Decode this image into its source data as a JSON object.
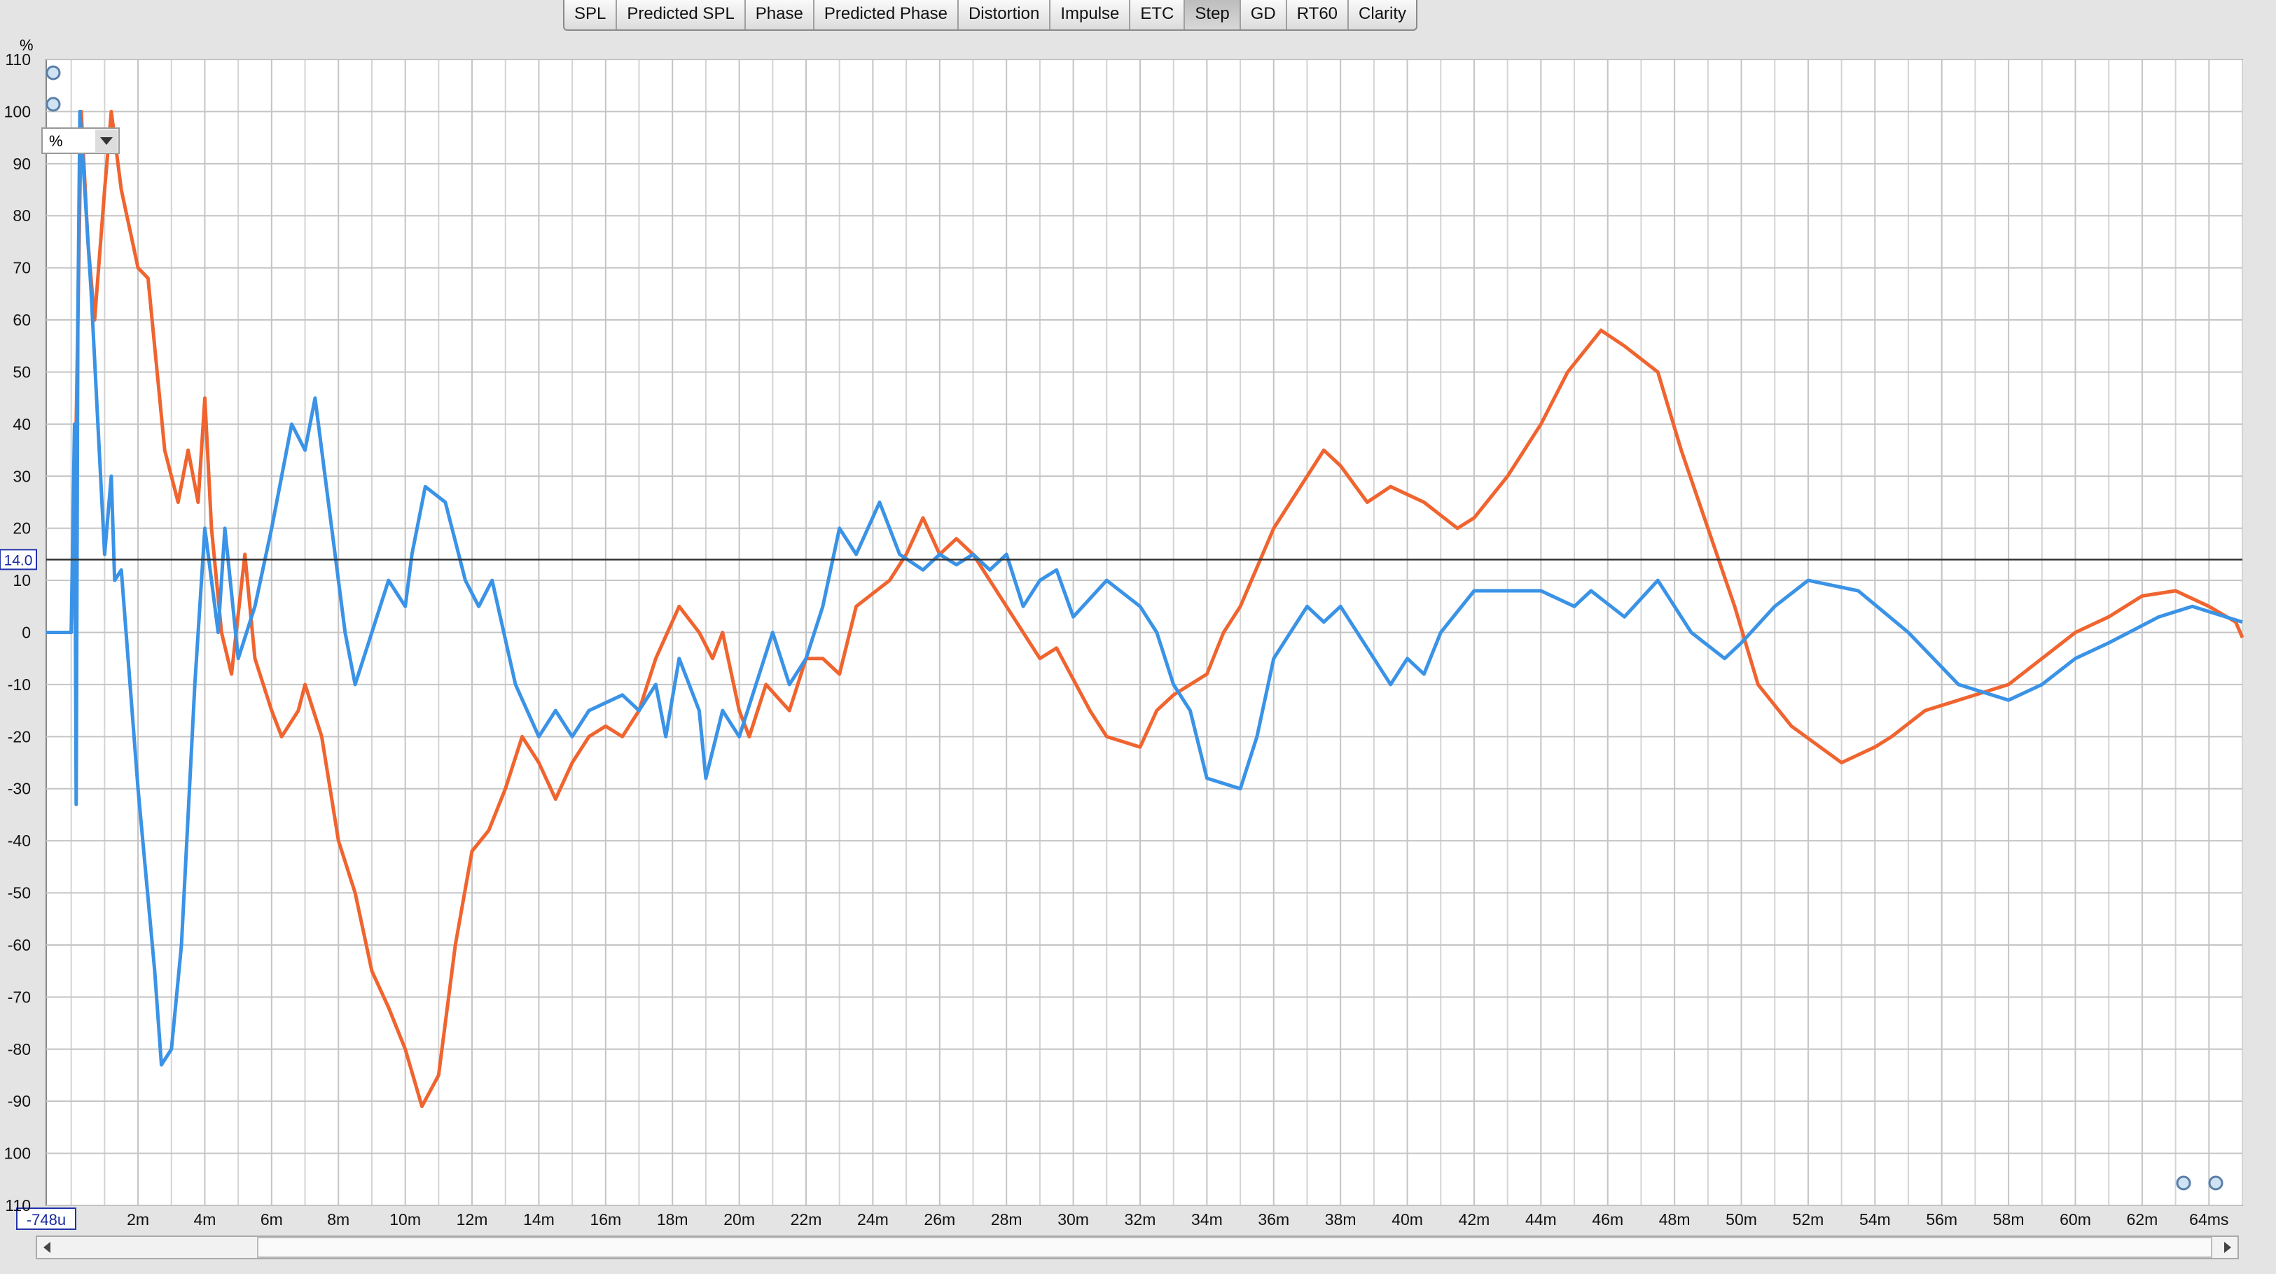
{
  "toolbar": {
    "tabs": [
      {
        "label": "SPL",
        "selected": false
      },
      {
        "label": "Predicted SPL",
        "selected": false
      },
      {
        "label": "Phase",
        "selected": false
      },
      {
        "label": "Predicted Phase",
        "selected": false
      },
      {
        "label": "Distortion",
        "selected": false
      },
      {
        "label": "Impulse",
        "selected": false
      },
      {
        "label": "ETC",
        "selected": false
      },
      {
        "label": "Step",
        "selected": true
      },
      {
        "label": "GD",
        "selected": false
      },
      {
        "label": "RT60",
        "selected": false
      },
      {
        "label": "Clarity",
        "selected": false
      }
    ]
  },
  "unit_selector": "%",
  "chart_data": {
    "type": "line",
    "y_unit": "%",
    "xlim": [
      -0.748,
      65
    ],
    "ylim": [
      -110,
      110
    ],
    "xticks": [
      {
        "value": -0.748,
        "label": "-748u"
      },
      {
        "value": 2,
        "label": "2m"
      },
      {
        "value": 4,
        "label": "4m"
      },
      {
        "value": 6,
        "label": "6m"
      },
      {
        "value": 8,
        "label": "8m"
      },
      {
        "value": 10,
        "label": "10m"
      },
      {
        "value": 12,
        "label": "12m"
      },
      {
        "value": 14,
        "label": "14m"
      },
      {
        "value": 16,
        "label": "16m"
      },
      {
        "value": 18,
        "label": "18m"
      },
      {
        "value": 20,
        "label": "20m"
      },
      {
        "value": 22,
        "label": "22m"
      },
      {
        "value": 24,
        "label": "24m"
      },
      {
        "value": 26,
        "label": "26m"
      },
      {
        "value": 28,
        "label": "28m"
      },
      {
        "value": 30,
        "label": "30m"
      },
      {
        "value": 32,
        "label": "32m"
      },
      {
        "value": 34,
        "label": "34m"
      },
      {
        "value": 36,
        "label": "36m"
      },
      {
        "value": 38,
        "label": "38m"
      },
      {
        "value": 40,
        "label": "40m"
      },
      {
        "value": 42,
        "label": "42m"
      },
      {
        "value": 44,
        "label": "44m"
      },
      {
        "value": 46,
        "label": "46m"
      },
      {
        "value": 48,
        "label": "48m"
      },
      {
        "value": 50,
        "label": "50m"
      },
      {
        "value": 52,
        "label": "52m"
      },
      {
        "value": 54,
        "label": "54m"
      },
      {
        "value": 56,
        "label": "56m"
      },
      {
        "value": 58,
        "label": "58m"
      },
      {
        "value": 60,
        "label": "60m"
      },
      {
        "value": 62,
        "label": "62m"
      },
      {
        "value": 64,
        "label": "64ms"
      }
    ],
    "xminorticks": [
      0,
      1,
      3,
      5,
      7,
      9,
      11,
      13,
      15,
      17,
      19,
      21,
      23,
      25,
      27,
      29,
      31,
      33,
      35,
      37,
      39,
      41,
      43,
      45,
      47,
      49,
      51,
      53,
      55,
      57,
      59,
      61,
      63,
      65
    ],
    "yticks": [
      110,
      100,
      90,
      80,
      70,
      60,
      50,
      40,
      30,
      20,
      10,
      0,
      -10,
      -20,
      -30,
      -40,
      -50,
      -60,
      -70,
      -80,
      -90,
      {
        "value": -100,
        "label": "100"
      },
      {
        "value": -110,
        "label": "110"
      }
    ],
    "grid": true,
    "cursor": {
      "value": 14,
      "label": "14.0"
    },
    "series": [
      {
        "color": "#f0642f",
        "x": [
          -0.748,
          0.0,
          0.1,
          0.3,
          0.5,
          0.7,
          1.0,
          1.2,
          1.5,
          2.0,
          2.3,
          2.8,
          3.2,
          3.5,
          3.8,
          4.0,
          4.2,
          4.5,
          4.8,
          5.2,
          5.5,
          6.0,
          6.3,
          6.8,
          7.0,
          7.5,
          8.0,
          8.5,
          9.0,
          9.5,
          10.0,
          10.5,
          11.0,
          11.5,
          12.0,
          12.5,
          13.0,
          13.5,
          14.0,
          14.5,
          15.0,
          15.5,
          16.0,
          16.5,
          17.0,
          17.5,
          18.2,
          18.8,
          19.2,
          19.5,
          20.0,
          20.3,
          20.8,
          21.5,
          22.0,
          22.5,
          23.0,
          23.5,
          24.5,
          25.0,
          25.5,
          26.0,
          26.5,
          27.0,
          27.5,
          28.5,
          29.0,
          29.5,
          30.5,
          31.0,
          32.0,
          32.5,
          33.0,
          34.0,
          34.5,
          35.0,
          36.0,
          36.5,
          37.0,
          37.5,
          38.0,
          38.8,
          39.5,
          40.5,
          41.5,
          42.0,
          43.0,
          44.0,
          44.8,
          45.8,
          46.5,
          47.5,
          48.2,
          49.0,
          49.8,
          50.5,
          51.5,
          53.0,
          54.0,
          54.5,
          55.5,
          57.0,
          58.0,
          59.0,
          60.0,
          61.0,
          62.0,
          63.0,
          64.0,
          64.8,
          65.0
        ],
        "values": [
          0,
          0,
          20,
          100,
          75,
          60,
          85,
          100,
          85,
          70,
          68,
          35,
          25,
          35,
          25,
          45,
          20,
          0,
          -8,
          15,
          -5,
          -15,
          -20,
          -15,
          -10,
          -20,
          -40,
          -50,
          -65,
          -72,
          -80,
          -91,
          -85,
          -60,
          -42,
          -38,
          -30,
          -20,
          -25,
          -32,
          -25,
          -20,
          -18,
          -20,
          -15,
          -5,
          5,
          0,
          -5,
          0,
          -15,
          -20,
          -10,
          -15,
          -5,
          -5,
          -8,
          5,
          10,
          15,
          22,
          15,
          18,
          15,
          10,
          0,
          -5,
          -3,
          -15,
          -20,
          -22,
          -15,
          -12,
          -8,
          0,
          5,
          20,
          25,
          30,
          35,
          32,
          25,
          28,
          25,
          20,
          22,
          30,
          40,
          50,
          58,
          55,
          50,
          35,
          20,
          5,
          -10,
          -18,
          -25,
          -22,
          -20,
          -15,
          -12,
          -10,
          -5,
          0,
          3,
          7,
          8,
          5,
          2,
          -1
        ]
      },
      {
        "color": "#3a93e6",
        "x": [
          -0.748,
          0.0,
          0.1,
          0.15,
          0.2,
          0.26,
          0.6,
          0.8,
          1.0,
          1.2,
          1.3,
          1.5,
          2.0,
          2.5,
          2.7,
          3.0,
          3.3,
          3.7,
          4.0,
          4.4,
          4.6,
          5.0,
          5.5,
          6.0,
          6.6,
          7.0,
          7.3,
          7.7,
          8.2,
          8.5,
          9.0,
          9.5,
          10.0,
          10.2,
          10.6,
          11.2,
          11.8,
          12.2,
          12.6,
          13.3,
          14.0,
          14.5,
          15.0,
          15.5,
          16.5,
          17.0,
          17.5,
          17.8,
          18.2,
          18.8,
          19.0,
          19.5,
          20.0,
          20.5,
          21.0,
          21.5,
          22.0,
          22.5,
          23.0,
          23.5,
          24.2,
          24.8,
          25.5,
          26.0,
          26.5,
          27.0,
          27.5,
          28.0,
          28.5,
          29.0,
          29.5,
          30.0,
          31.0,
          32.0,
          32.5,
          33.0,
          33.5,
          34.0,
          35.0,
          35.5,
          36.0,
          36.5,
          37.0,
          37.5,
          38.0,
          39.0,
          39.5,
          40.0,
          40.5,
          41.0,
          42.0,
          43.0,
          44.0,
          45.0,
          45.5,
          46.5,
          47.5,
          48.5,
          49.5,
          50.0,
          51.0,
          52.0,
          53.5,
          55.0,
          56.5,
          57.5,
          58.0,
          59.0,
          60.0,
          61.0,
          62.5,
          63.5,
          64.5,
          65.0
        ],
        "values": [
          0,
          0,
          40,
          -33,
          60,
          100,
          65,
          40,
          15,
          30,
          10,
          12,
          -30,
          -65,
          -83,
          -80,
          -60,
          -10,
          20,
          0,
          20,
          -5,
          5,
          20,
          40,
          35,
          45,
          25,
          0,
          -10,
          0,
          10,
          5,
          15,
          28,
          25,
          10,
          5,
          10,
          -10,
          -20,
          -15,
          -20,
          -15,
          -12,
          -15,
          -10,
          -20,
          -5,
          -15,
          -28,
          -15,
          -20,
          -10,
          0,
          -10,
          -5,
          5,
          20,
          15,
          25,
          15,
          12,
          15,
          13,
          15,
          12,
          15,
          5,
          10,
          12,
          3,
          10,
          5,
          0,
          -10,
          -15,
          -28,
          -30,
          -20,
          -5,
          0,
          5,
          2,
          5,
          -5,
          -10,
          -5,
          -8,
          0,
          8,
          8,
          8,
          5,
          8,
          3,
          10,
          0,
          -5,
          -2,
          5,
          10,
          8,
          0,
          -10,
          -12,
          -13,
          -10,
          -5,
          -2,
          3,
          5,
          3,
          2
        ]
      }
    ]
  }
}
